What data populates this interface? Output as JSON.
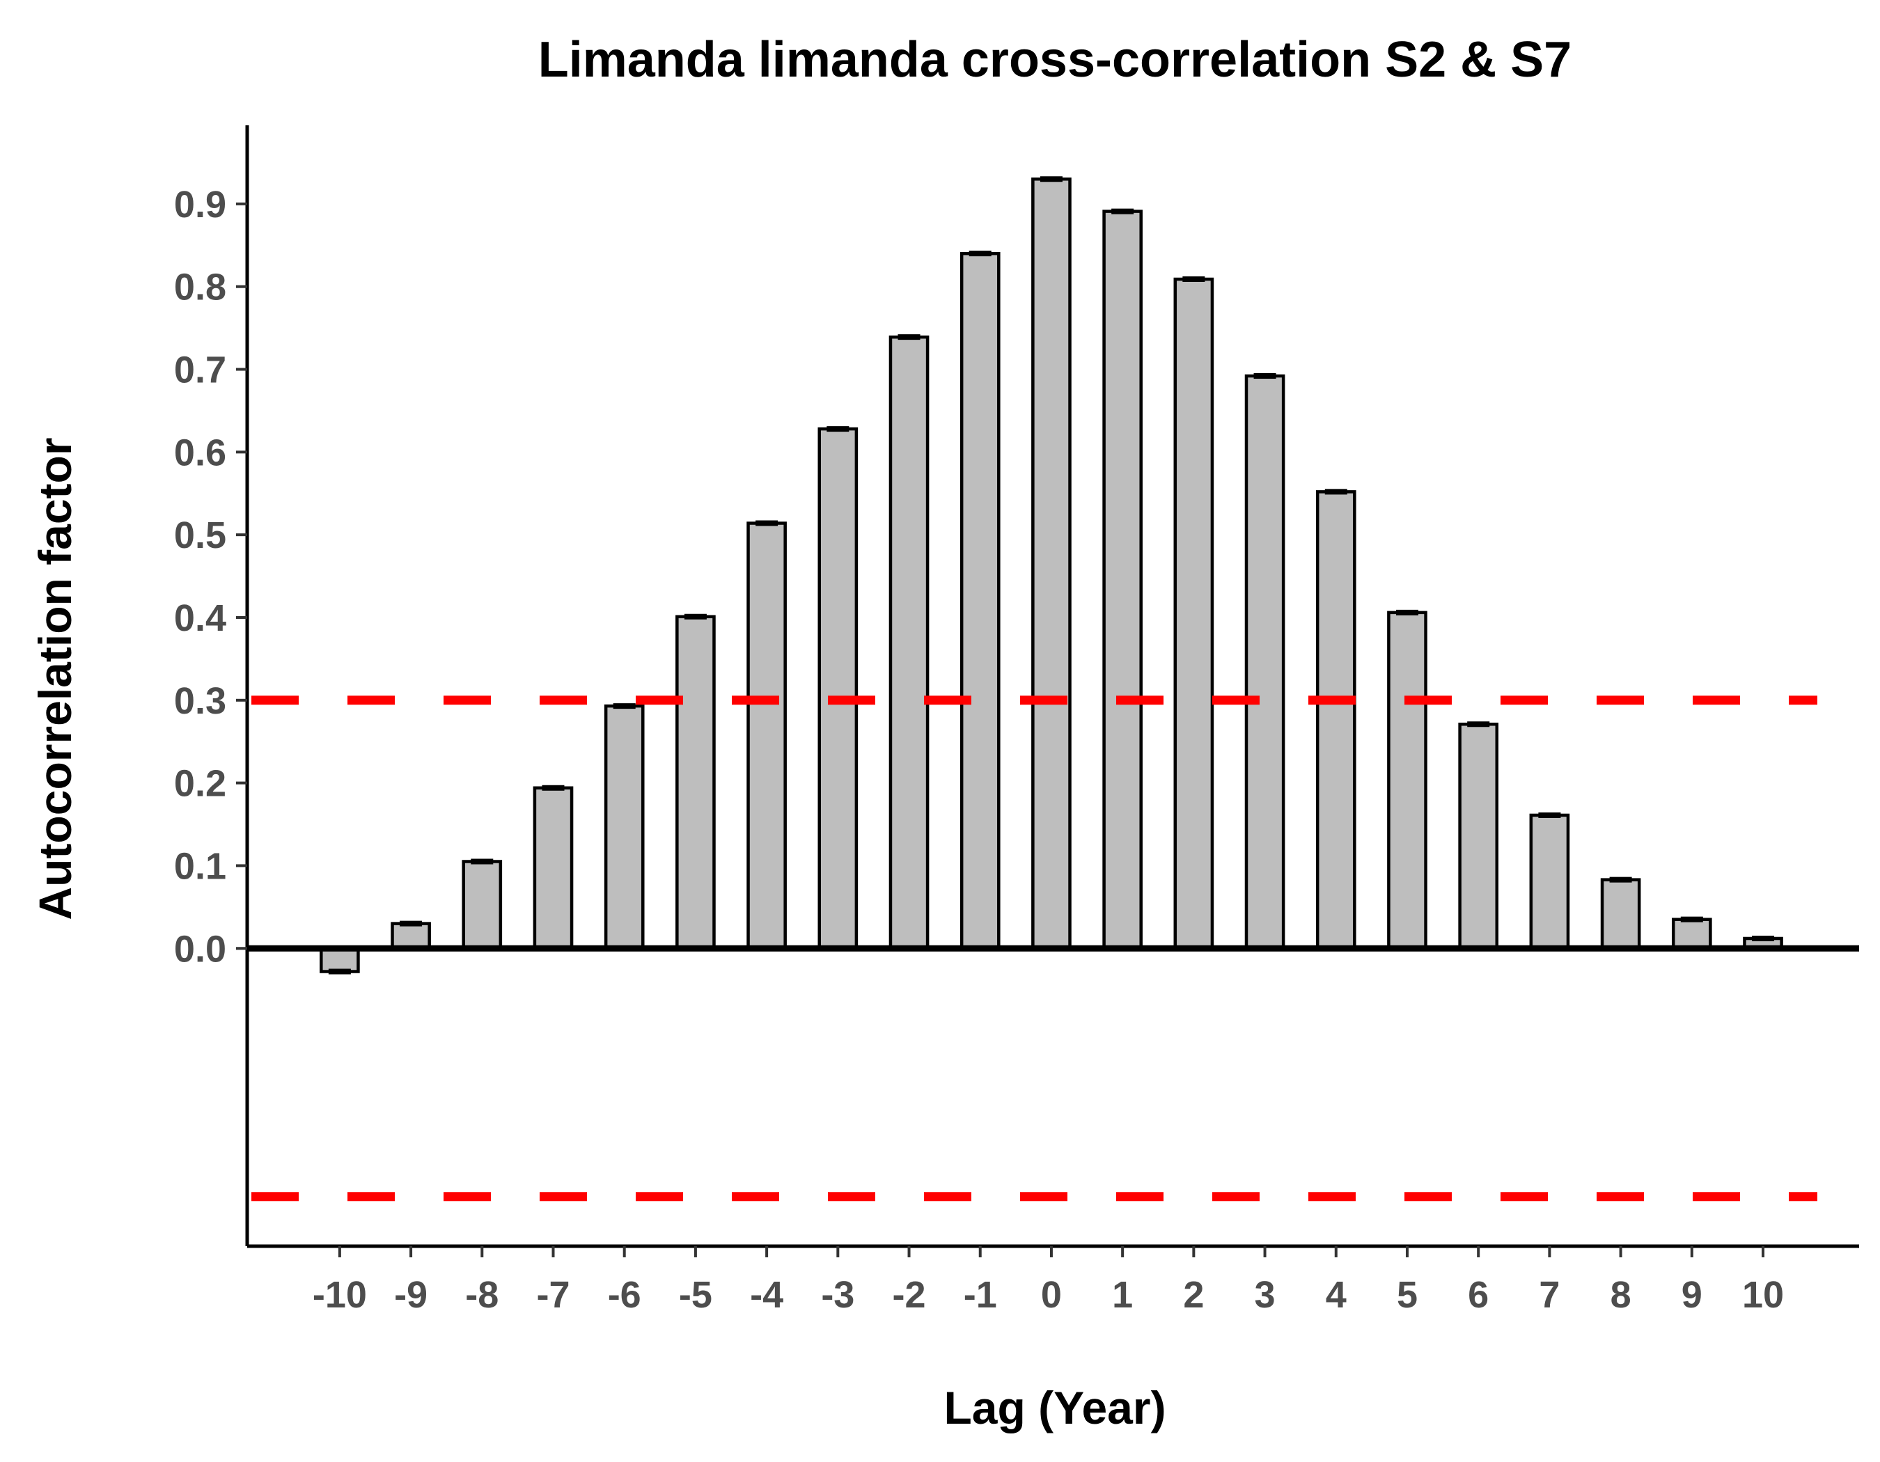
{
  "chart_data": {
    "type": "bar",
    "title": "Limanda limanda cross-correlation S2 & S7",
    "xlabel": "Lag (Year)",
    "ylabel": "Autocorrelation factor",
    "categories": [
      "-10",
      "-9",
      "-8",
      "-7",
      "-6",
      "-5",
      "-4",
      "-3",
      "-2",
      "-1",
      "0",
      "1",
      "2",
      "3",
      "4",
      "5",
      "6",
      "7",
      "8",
      "9",
      "10"
    ],
    "values": [
      -0.028,
      0.03,
      0.105,
      0.194,
      0.293,
      0.401,
      0.514,
      0.628,
      0.739,
      0.84,
      0.93,
      0.891,
      0.809,
      0.692,
      0.552,
      0.406,
      0.271,
      0.161,
      0.083,
      0.035,
      0.012
    ],
    "yticks": [
      "0.0",
      "0.1",
      "0.2",
      "0.3",
      "0.4",
      "0.5",
      "0.6",
      "0.7",
      "0.8",
      "0.9"
    ],
    "ylim": [
      -0.36,
      0.995
    ],
    "confidence_lines": [
      0.3,
      -0.3
    ],
    "grid": false,
    "colors": {
      "bar_fill": "#bebebe",
      "bar_stroke": "#000000",
      "confidence_line": "#ff0000",
      "tick_label": "#4d4d4d"
    }
  }
}
